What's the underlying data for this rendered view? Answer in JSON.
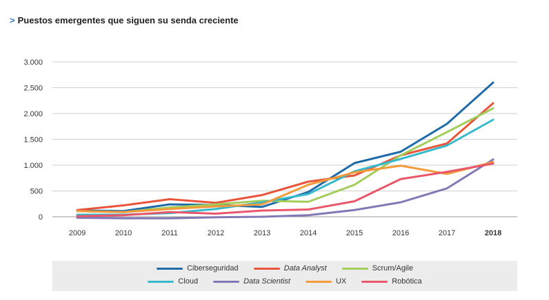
{
  "title": "Puestos emergentes que siguen su senda creciente",
  "title_marker": ">",
  "chart_data": {
    "type": "line",
    "title": "Puestos emergentes que siguen su senda creciente",
    "x": [
      "2009",
      "2010",
      "2011",
      "2012",
      "2013",
      "2014",
      "2015",
      "2016",
      "2017",
      "2018"
    ],
    "highlight_x": "2018",
    "y_ticks": [
      0,
      500,
      1000,
      1500,
      2000,
      2500,
      3000
    ],
    "y_tick_labels": [
      "0",
      "500",
      "1.000",
      "1.500",
      "2.000",
      "2.500",
      "3.000"
    ],
    "ylim": [
      0,
      3000
    ],
    "grid": true,
    "legend_position": "bottom",
    "series": [
      {
        "name": "Ciberseguridad",
        "italic": false,
        "color": "#1f6aa8",
        "values": [
          120,
          110,
          240,
          230,
          190,
          480,
          1040,
          1260,
          1800,
          2600
        ]
      },
      {
        "name": "Data Analyst",
        "italic": true,
        "color": "#e9533a",
        "values": [
          130,
          220,
          340,
          270,
          420,
          680,
          800,
          1190,
          1420,
          2200
        ]
      },
      {
        "name": "Scrum/Agile",
        "italic": false,
        "color": "#a3cd5b",
        "values": [
          110,
          90,
          180,
          240,
          310,
          290,
          620,
          1190,
          1640,
          2100
        ]
      },
      {
        "name": "Cloud",
        "italic": false,
        "color": "#37b9cc",
        "values": [
          40,
          40,
          70,
          150,
          280,
          440,
          880,
          1120,
          1380,
          1880
        ]
      },
      {
        "name": "Data Scientist",
        "italic": true,
        "color": "#8079b5",
        "values": [
          -20,
          -30,
          -30,
          -10,
          0,
          30,
          130,
          280,
          550,
          1110
        ]
      },
      {
        "name": "UX",
        "italic": false,
        "color": "#f39a3b",
        "values": [
          110,
          90,
          150,
          200,
          240,
          620,
          860,
          990,
          830,
          1060
        ]
      },
      {
        "name": "Robótica",
        "italic": false,
        "color": "#e9566a",
        "values": [
          10,
          30,
          90,
          60,
          120,
          140,
          300,
          730,
          870,
          1030
        ]
      }
    ]
  }
}
